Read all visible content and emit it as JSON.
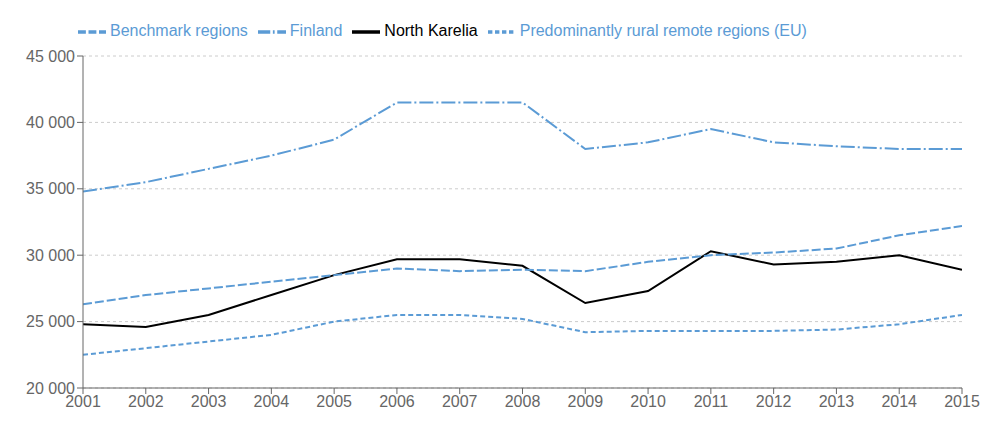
{
  "chart_data": {
    "type": "line",
    "x": [
      2001,
      2002,
      2003,
      2004,
      2005,
      2006,
      2007,
      2008,
      2009,
      2010,
      2011,
      2012,
      2013,
      2014,
      2015
    ],
    "series": [
      {
        "name": "North Karelia",
        "color": "#000000",
        "line_style": "solid",
        "values": [
          24800,
          24600,
          25500,
          27000,
          28500,
          29700,
          29700,
          29200,
          26400,
          27300,
          30300,
          29300,
          29500,
          30000,
          28900
        ]
      },
      {
        "name": "Benchmark regions",
        "color": "#5B9BD5",
        "line_style": "dashed",
        "values": [
          26300,
          27000,
          27500,
          28000,
          28500,
          29000,
          28800,
          28900,
          28800,
          29500,
          30000,
          30200,
          30500,
          31500,
          32200
        ]
      },
      {
        "name": "Finland",
        "color": "#5B9BD5",
        "line_style": "dashdot",
        "values": [
          34800,
          35500,
          36500,
          37500,
          38700,
          41500,
          41500,
          41500,
          38000,
          38500,
          39500,
          38500,
          38200,
          38000,
          38000
        ]
      },
      {
        "name": "Predominantly rural remote regions (EU)",
        "color": "#5B9BD5",
        "line_style": "densely_dashed",
        "values": [
          22500,
          23000,
          23500,
          24000,
          25000,
          25500,
          25500,
          25200,
          24200,
          24300,
          24300,
          24300,
          24400,
          24800,
          25500
        ]
      }
    ],
    "xlim": [
      2001,
      2015
    ],
    "xticks": [
      2001,
      2002,
      2003,
      2004,
      2005,
      2006,
      2007,
      2008,
      2009,
      2010,
      2011,
      2012,
      2013,
      2014,
      2015
    ],
    "ylim": [
      20000,
      45000
    ],
    "yticks": [
      {
        "value": 20000,
        "label": "20 000"
      },
      {
        "value": 25000,
        "label": "25 000"
      },
      {
        "value": 30000,
        "label": "30 000"
      },
      {
        "value": 35000,
        "label": "35 000"
      },
      {
        "value": 40000,
        "label": "40 000"
      },
      {
        "value": 45000,
        "label": "45 000"
      }
    ],
    "grid": true,
    "legend": "top"
  }
}
